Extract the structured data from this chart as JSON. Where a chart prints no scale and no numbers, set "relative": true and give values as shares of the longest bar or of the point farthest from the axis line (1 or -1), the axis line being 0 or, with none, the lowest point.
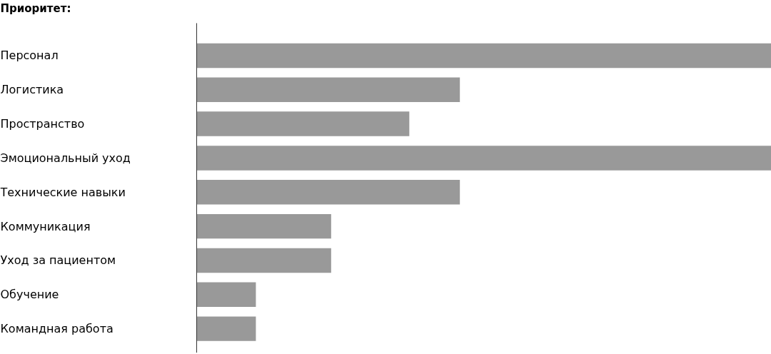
{
  "chart_data": {
    "type": "bar",
    "orientation": "horizontal",
    "relative": true,
    "title": "Приоритет:",
    "categories": [
      "Персонал",
      "Логистика",
      "Пространство",
      "Эмоциональный уход",
      "Технические навыки",
      "Коммуникация",
      "Уход за пациентом",
      "Обучение",
      "Командная работа"
    ],
    "values": [
      1,
      0.458,
      0.37,
      1,
      0.458,
      0.234,
      0.234,
      0.103,
      0.103
    ],
    "color": "#999999"
  }
}
